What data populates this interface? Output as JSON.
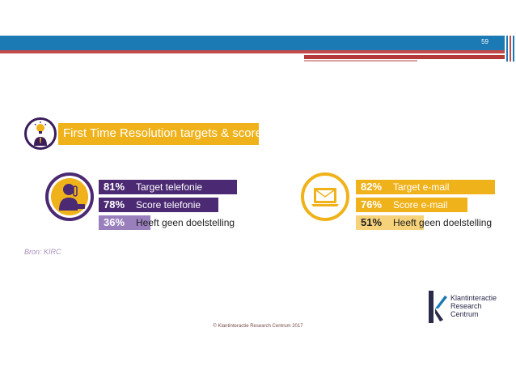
{
  "page": {
    "number": "59"
  },
  "header": {
    "title": "First Time Resolution targets & scores"
  },
  "left_stats": [
    {
      "pct": "81%",
      "label": "Target telefonie",
      "value": 81
    },
    {
      "pct": "78%",
      "label": "Score telefonie",
      "value": 78
    },
    {
      "pct": "36%",
      "label": "Heeft geen doelstelling",
      "value": 36
    }
  ],
  "right_stats": [
    {
      "pct": "82%",
      "label": "Target e-mail",
      "value": 82
    },
    {
      "pct": "76%",
      "label": "Score e-mail",
      "value": 76
    },
    {
      "pct": "51%",
      "label": "Heeft geen doelstelling",
      "value": 51
    }
  ],
  "source": "Bron: KIRC",
  "footer": "© Klantinteractie Research Centrum 2017",
  "logo": {
    "line1": "Klantinteractie",
    "line2": "Research",
    "line3": "Centrum"
  },
  "colors": {
    "purple": "#4b2a73",
    "purple_light": "#9a7fbd",
    "yellow": "#f0b21b",
    "yellow_light": "#f6d27a",
    "blue": "#1b7ab3",
    "red": "#c14a4a"
  },
  "icons": {
    "header": "lightbulb-person-icon",
    "left": "phone-person-icon",
    "right": "email-laptop-icon"
  }
}
